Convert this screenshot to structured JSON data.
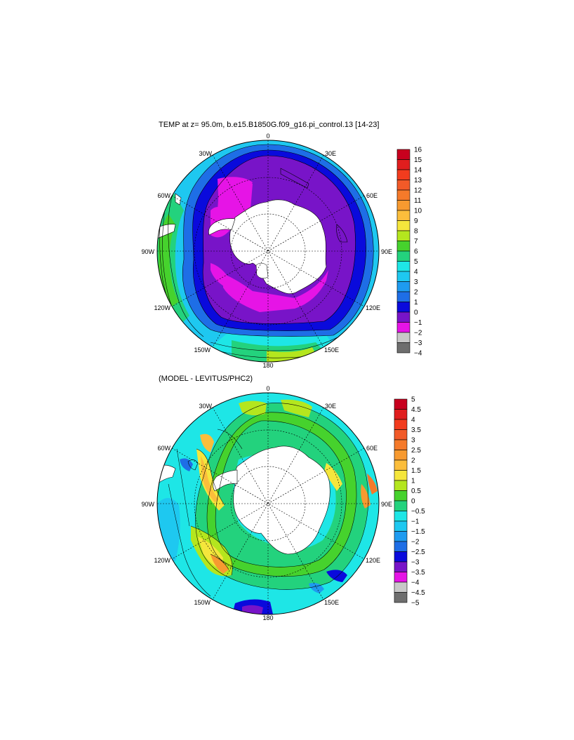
{
  "panels": [
    {
      "title": "TEMP at z=  95.0m, b.e15.B1850G.f09_g16.pi_control.13 [14-23]",
      "lon_labels": {
        "top": "0",
        "tr": "30E",
        "rt": "60E",
        "right": "90E",
        "rb": "120E",
        "br": "150E",
        "bottom": "180",
        "bl": "150W",
        "lb": "120W",
        "left": "90W",
        "lt": "60W",
        "tl": "30W"
      },
      "colorbar": {
        "labels": [
          "16",
          "15",
          "14",
          "13",
          "12",
          "11",
          "10",
          "9",
          "8",
          "7",
          "6",
          "5",
          "4",
          "3",
          "2",
          "1",
          "0",
          "−1",
          "−2",
          "−3",
          "−4"
        ],
        "colors": [
          "#c8001e",
          "#e01e1e",
          "#f23c1e",
          "#f25a28",
          "#f57a2a",
          "#f79a30",
          "#fbbe3c",
          "#f5e63c",
          "#b4e61e",
          "#46d22d",
          "#23d27d",
          "#1ee6e6",
          "#1ec8f0",
          "#1e9bf0",
          "#1e6ee6",
          "#0a0adc",
          "#7814c8",
          "#e614e6",
          "#c8c8c8",
          "#6e6e6e"
        ]
      }
    },
    {
      "title": "(MODEL - LEVITUS/PHC2)",
      "lon_labels": {
        "top": "0",
        "tr": "30E",
        "rt": "60E",
        "right": "90E",
        "rb": "120E",
        "br": "150E",
        "bottom": "180",
        "bl": "150W",
        "lb": "120W",
        "left": "90W",
        "lt": "60W",
        "tl": "30W"
      },
      "colorbar": {
        "labels": [
          "5",
          "4.5",
          "4",
          "3.5",
          "3",
          "2.5",
          "2",
          "1.5",
          "1",
          "0.5",
          "0",
          "−0.5",
          "−1",
          "−1.5",
          "−2",
          "−2.5",
          "−3",
          "−3.5",
          "−4",
          "−4.5",
          "−5"
        ],
        "colors": [
          "#c8001e",
          "#e01e1e",
          "#f23c1e",
          "#f25a28",
          "#f57a2a",
          "#f79a30",
          "#fbbe3c",
          "#f5e63c",
          "#b4e61e",
          "#46d22d",
          "#23d27d",
          "#1ee6e6",
          "#1ec8f0",
          "#1e9bf0",
          "#1e6ee6",
          "#0a0adc",
          "#7814c8",
          "#e614e6",
          "#c8c8c8",
          "#6e6e6e"
        ]
      }
    }
  ],
  "palette": {
    "magenta": "#e614e6",
    "purple": "#7814c8",
    "blue": "#0a0adc",
    "blue_mid": "#1e6ee6",
    "blue_light": "#1e9bf0",
    "sky": "#1ec8f0",
    "cyan": "#1ee6e6",
    "teal_green": "#23d27d",
    "green": "#46d22d",
    "yellow_green": "#b4e61e",
    "yellow": "#f5e63c",
    "orange": "#f79a30",
    "land": "#ffffff",
    "outline": "#000000"
  }
}
